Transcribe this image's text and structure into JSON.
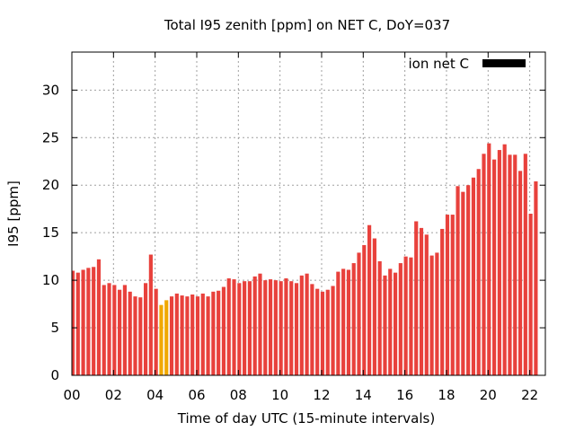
{
  "chart_data": {
    "type": "bar",
    "title": "Total I95 zenith [ppm] on NET C, DoY=037",
    "xlabel": "Time of day UTC (15-minute intervals)",
    "ylabel": "I95 [ppm]",
    "ylim": [
      0,
      34
    ],
    "y_ticks": [
      0,
      5,
      10,
      15,
      20,
      25,
      30
    ],
    "xlim_hours": [
      0,
      22.75
    ],
    "x_ticks": [
      "00",
      "02",
      "04",
      "06",
      "08",
      "10",
      "12",
      "14",
      "16",
      "18",
      "20",
      "22"
    ],
    "grid": true,
    "legend": {
      "position": "top-right",
      "label": "ion net C",
      "color": "#000000"
    },
    "bar_color": "#e8413c",
    "highlight_color": "#f0a800",
    "highlighted_bins": [
      17,
      18
    ],
    "interval_hours": 0.25,
    "values": [
      11.0,
      10.8,
      11.1,
      11.3,
      11.4,
      12.2,
      9.5,
      9.7,
      9.5,
      9.0,
      9.5,
      8.8,
      8.3,
      8.2,
      9.7,
      12.7,
      9.1,
      7.4,
      7.9,
      8.3,
      8.6,
      8.4,
      8.3,
      8.5,
      8.3,
      8.6,
      8.3,
      8.8,
      8.9,
      9.3,
      10.2,
      10.1,
      9.7,
      9.9,
      9.9,
      10.4,
      10.7,
      10.0,
      10.1,
      10.0,
      9.9,
      10.2,
      9.9,
      9.7,
      10.5,
      10.7,
      9.6,
      9.1,
      8.8,
      9.0,
      9.4,
      10.9,
      11.2,
      11.1,
      11.8,
      12.9,
      13.7,
      15.8,
      14.4,
      12.0,
      10.5,
      11.2,
      10.8,
      11.8,
      12.5,
      12.4,
      16.2,
      15.5,
      14.8,
      12.6,
      12.9,
      15.4,
      16.9,
      16.9,
      19.9,
      19.3,
      20.0,
      20.8,
      21.7,
      23.3,
      24.4,
      22.7,
      23.7,
      24.3,
      23.2,
      23.2,
      21.5,
      23.3,
      17.0,
      20.4
    ]
  }
}
